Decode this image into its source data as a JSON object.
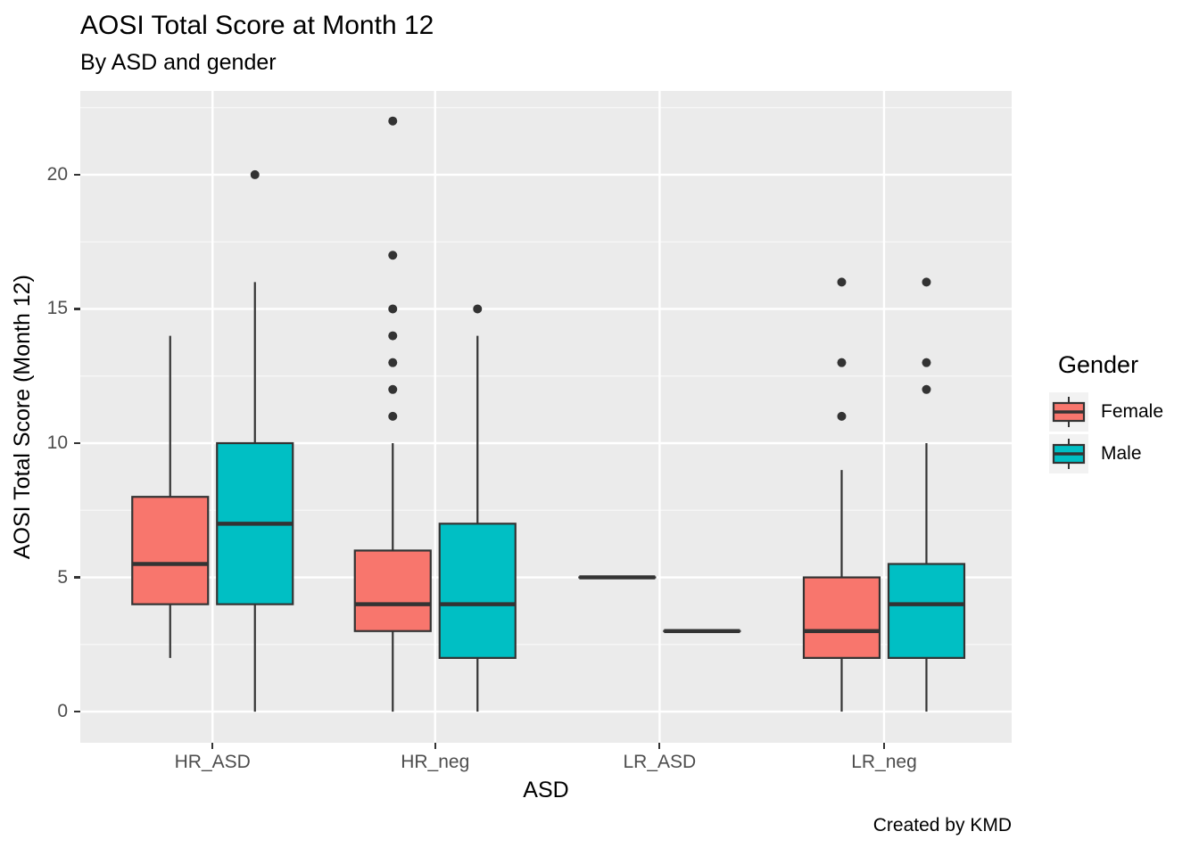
{
  "chart_data": {
    "type": "boxplot",
    "title": "AOSI Total Score at Month 12",
    "subtitle": "By ASD and gender",
    "caption": "Created by KMD",
    "xlabel": "ASD",
    "ylabel": "AOSI Total Score (Month 12)",
    "categories": [
      "HR_ASD",
      "HR_neg",
      "LR_ASD",
      "LR_neg"
    ],
    "yticks": [
      0,
      5,
      10,
      15,
      20
    ],
    "yticks_minor": [
      2.5,
      7.5,
      12.5,
      17.5,
      22.5
    ],
    "ylim": [
      -1.16,
      23.12
    ],
    "grid": "major-and-minor",
    "legend": {
      "title": "Gender",
      "position": "right",
      "entries": [
        {
          "label": "Female",
          "color": "#F8766D"
        },
        {
          "label": "Male",
          "color": "#00BFC4"
        }
      ]
    },
    "series": [
      {
        "name": "Female",
        "color": "#F8766D",
        "boxes": [
          {
            "category": "HR_ASD",
            "whisker_low": 2,
            "q1": 4,
            "median": 5.5,
            "q3": 8,
            "whisker_high": 14,
            "outliers": []
          },
          {
            "category": "HR_neg",
            "whisker_low": 0,
            "q1": 3,
            "median": 4,
            "q3": 6,
            "whisker_high": 10,
            "outliers": [
              11,
              12,
              13,
              14,
              15,
              17,
              22
            ]
          },
          {
            "category": "LR_ASD",
            "whisker_low": 5,
            "q1": 5,
            "median": 5,
            "q3": 5,
            "whisker_high": 5,
            "outliers": []
          },
          {
            "category": "LR_neg",
            "whisker_low": 0,
            "q1": 2,
            "median": 3,
            "q3": 5,
            "whisker_high": 9,
            "outliers": [
              11,
              13,
              16
            ]
          }
        ]
      },
      {
        "name": "Male",
        "color": "#00BFC4",
        "boxes": [
          {
            "category": "HR_ASD",
            "whisker_low": 0,
            "q1": 4,
            "median": 7,
            "q3": 10,
            "whisker_high": 16,
            "outliers": [
              20
            ]
          },
          {
            "category": "HR_neg",
            "whisker_low": 0,
            "q1": 2,
            "median": 4,
            "q3": 7,
            "whisker_high": 14,
            "outliers": [
              15
            ]
          },
          {
            "category": "LR_ASD",
            "whisker_low": 3,
            "q1": 3,
            "median": 3,
            "q3": 3,
            "whisker_high": 3,
            "outliers": []
          },
          {
            "category": "LR_neg",
            "whisker_low": 0,
            "q1": 2,
            "median": 4,
            "q3": 5.5,
            "whisker_high": 10,
            "outliers": [
              12,
              13,
              16
            ]
          }
        ]
      }
    ],
    "colors": {
      "panel_background": "#EBEBEB",
      "grid_major": "#FFFFFF",
      "grid_minor": "#F6F6F6",
      "box_stroke": "#333333",
      "outlier": "#333333",
      "axis_text": "#4D4D4D",
      "legend_key_background": "#F2F2F2"
    }
  }
}
